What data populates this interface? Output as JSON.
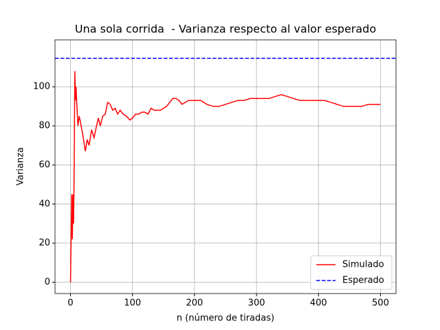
{
  "chart_data": {
    "type": "line",
    "title": "Una sola corrida  - Varianza respecto al valor esperado",
    "xlabel": "n (número de tiradas)",
    "ylabel": "Varianza",
    "x": [
      0,
      2,
      3,
      4,
      5,
      6,
      7,
      8,
      9,
      10,
      12,
      14,
      16,
      20,
      24,
      27,
      30,
      34,
      38,
      42,
      45,
      48,
      52,
      56,
      60,
      64,
      68,
      72,
      76,
      80,
      85,
      90,
      96,
      100,
      105,
      110,
      115,
      120,
      125,
      130,
      135,
      140,
      145,
      150,
      155,
      160,
      165,
      170,
      175,
      180,
      185,
      190,
      200,
      210,
      220,
      230,
      240,
      250,
      260,
      270,
      280,
      290,
      300,
      310,
      320,
      330,
      340,
      350,
      360,
      370,
      380,
      390,
      400,
      410,
      420,
      430,
      440,
      450,
      460,
      470,
      480,
      490,
      500
    ],
    "series": [
      {
        "name": "Simulado",
        "color": "#ff0000",
        "values": [
          0,
          45,
          22,
          45,
          30,
          60,
          108,
          93,
          100,
          92,
          80,
          85,
          82,
          75,
          67,
          73,
          70,
          78,
          74,
          80,
          84,
          80,
          85,
          86,
          92,
          91,
          88,
          89,
          86,
          88,
          86,
          85,
          83,
          84,
          86,
          86,
          87,
          87,
          86,
          89,
          88,
          88,
          88,
          89,
          90,
          92,
          94,
          94,
          93,
          91,
          92,
          93,
          93,
          93,
          91,
          90,
          90,
          91,
          92,
          93,
          93,
          94,
          94,
          94,
          94,
          95,
          96,
          95,
          94,
          93,
          93,
          93,
          93,
          93,
          92,
          91,
          90,
          90,
          90,
          90,
          91,
          91,
          91
        ]
      },
      {
        "name": "Esperado",
        "color": "#0000ff",
        "linestyle": "dashed",
        "hline": 114.6
      }
    ],
    "xlim": [
      -25,
      525
    ],
    "ylim": [
      -5.8,
      124
    ],
    "xticks": [
      0,
      100,
      200,
      300,
      400,
      500
    ],
    "yticks": [
      0,
      20,
      40,
      60,
      80,
      100
    ],
    "grid": true,
    "legend": "lower right"
  }
}
